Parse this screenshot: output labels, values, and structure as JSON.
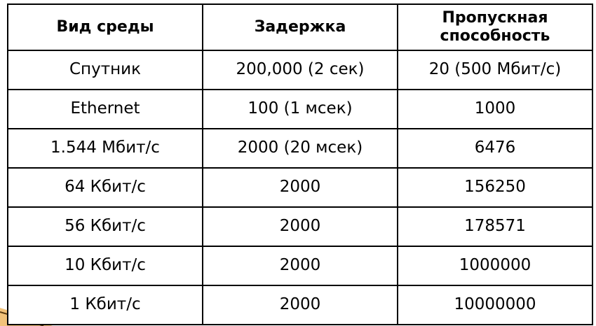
{
  "table": {
    "headers": [
      "Вид среды",
      "Задержка",
      "Пропускная способность"
    ],
    "rows": [
      [
        "Спутник",
        "200,000 (2 сек)",
        "20 (500 Мбит/с)"
      ],
      [
        "Ethernet",
        "100 (1 мсек)",
        "1000"
      ],
      [
        "1.544 Мбит/с",
        "2000 (20 мсек)",
        "6476"
      ],
      [
        "64 Кбит/с",
        "2000",
        "156250"
      ],
      [
        "56 Кбит/с",
        "2000",
        "178571"
      ],
      [
        "10 Кбит/с",
        "2000",
        "1000000"
      ],
      [
        "1 Кбит/с",
        "2000",
        "10000000"
      ]
    ]
  },
  "colors": {
    "border": "#000000",
    "decoration_orange": "#e8a033",
    "decoration_dark": "#5a3a10"
  }
}
